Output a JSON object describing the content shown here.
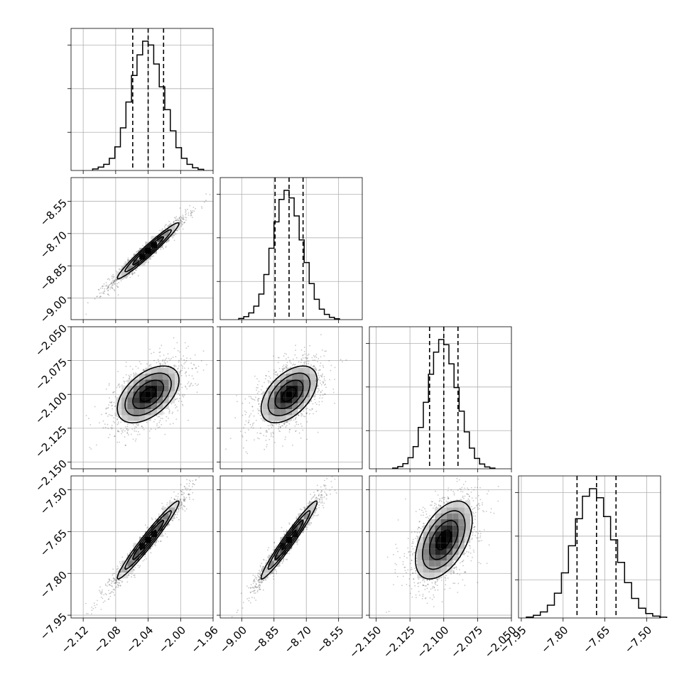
{
  "chart_data": {
    "type": "scatter",
    "subtype": "corner-plot",
    "grid": true,
    "quantiles": [
      0.16,
      0.5,
      0.84
    ],
    "parameters": [
      {
        "mean": -2.04,
        "sd": 0.019,
        "range": [
          -2.135,
          -1.96
        ],
        "ticks": [
          -2.12,
          -2.08,
          -2.04,
          -2.0,
          -1.96
        ],
        "tick_labels": [
          "−2.12",
          "−2.08",
          "−2.04",
          "−2.00",
          "−1.96"
        ]
      },
      {
        "mean": -8.78,
        "sd": 0.065,
        "range": [
          -9.1,
          -8.44
        ],
        "ticks": [
          -9.0,
          -8.85,
          -8.7,
          -8.55
        ],
        "tick_labels": [
          "−9.00",
          "−8.85",
          "−8.70",
          "−8.55"
        ]
      },
      {
        "mean": -2.1,
        "sd": 0.0105,
        "range": [
          -2.155,
          -2.05
        ],
        "ticks": [
          -2.15,
          -2.125,
          -2.1,
          -2.075,
          -2.05
        ],
        "tick_labels": [
          "−2.150",
          "−2.125",
          "−2.100",
          "−2.075",
          "−2.050"
        ]
      },
      {
        "mean": -7.68,
        "sd": 0.07,
        "range": [
          -7.96,
          -7.45
        ],
        "ticks": [
          -7.95,
          -7.8,
          -7.65,
          -7.5
        ],
        "tick_labels": [
          "−7.95",
          "−7.80",
          "−7.65",
          "−7.50"
        ]
      }
    ],
    "correlations": [
      [
        1.0,
        0.97,
        0.5,
        0.97
      ],
      [
        0.97,
        1.0,
        0.5,
        0.97
      ],
      [
        0.5,
        0.5,
        1.0,
        0.5
      ],
      [
        0.97,
        0.97,
        0.5,
        1.0
      ]
    ],
    "histograms": [
      {
        "bins": 20,
        "counts": [
          20,
          45,
          80,
          160,
          310,
          560,
          900,
          1250,
          1520,
          1700,
          1650,
          1400,
          1100,
          800,
          520,
          300,
          160,
          80,
          35,
          15
        ]
      },
      {
        "bins": 20,
        "counts": [
          15,
          40,
          90,
          180,
          340,
          600,
          950,
          1300,
          1600,
          1720,
          1620,
          1380,
          1060,
          760,
          480,
          270,
          140,
          70,
          30,
          12
        ]
      },
      {
        "bins": 20,
        "counts": [
          10,
          30,
          70,
          150,
          300,
          560,
          900,
          1280,
          1580,
          1750,
          1680,
          1420,
          1100,
          780,
          500,
          280,
          140,
          65,
          25,
          10
        ]
      },
      {
        "bins": 20,
        "counts": [
          12,
          35,
          80,
          170,
          330,
          600,
          960,
          1320,
          1620,
          1720,
          1600,
          1350,
          1040,
          740,
          470,
          260,
          130,
          60,
          25,
          10
        ]
      }
    ],
    "diagonal_tick_labels": [
      {
        "ticks": [
          -2.12,
          -2.08,
          -2.04,
          -2.0,
          -1.96
        ]
      },
      {
        "ticks": [
          -9.0,
          -8.85,
          -8.7,
          -8.55
        ]
      },
      {
        "ticks": [
          -2.15,
          -2.125,
          -2.1,
          -2.075,
          -2.05
        ]
      },
      {
        "ticks": [
          -7.95,
          -7.8,
          -7.65,
          -7.5
        ]
      }
    ]
  },
  "colors": {
    "ink": "#000000",
    "grid": "#b0b0b0",
    "background": "#ffffff"
  }
}
